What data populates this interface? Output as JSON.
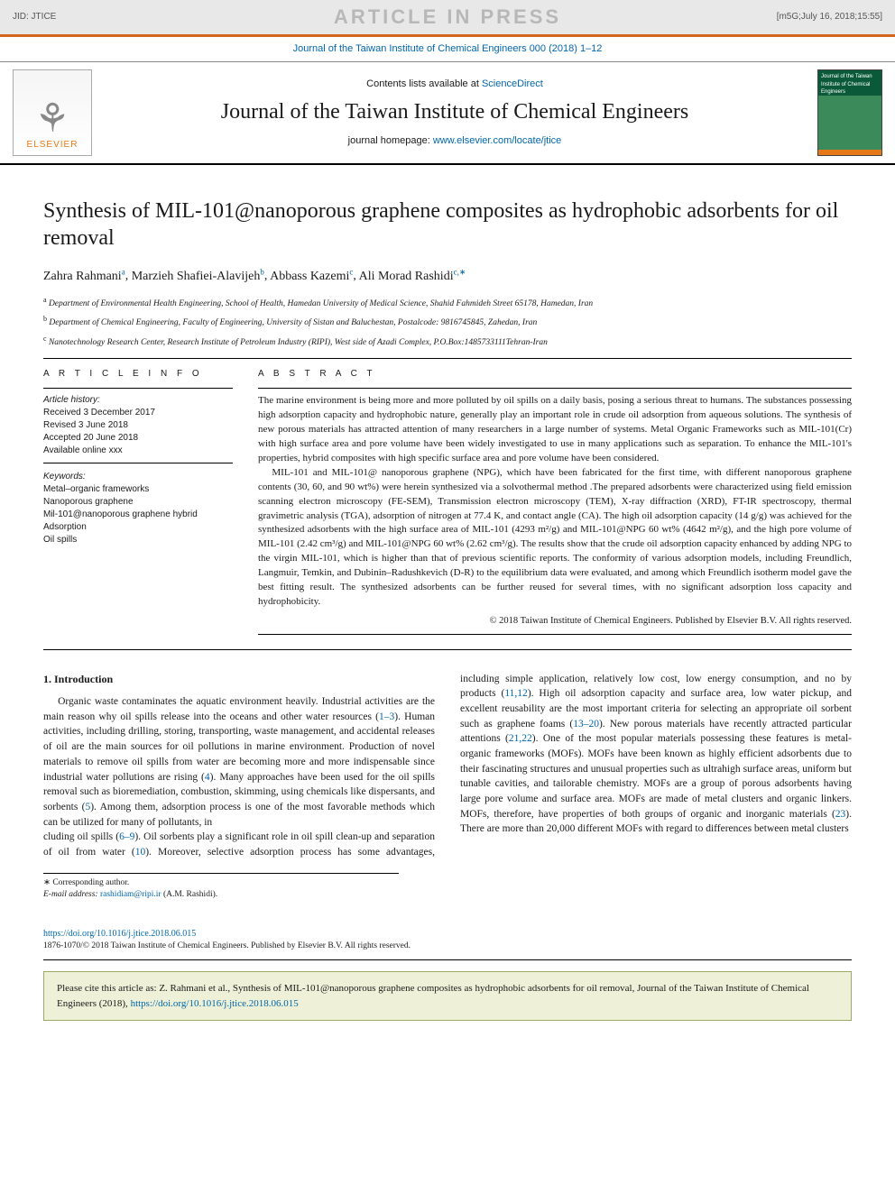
{
  "banner": {
    "jid": "JID: JTICE",
    "watermark": "ARTICLE IN PRESS",
    "datestamp": "[m5G;July 16, 2018;15:55]"
  },
  "journal_ref": "Journal of the Taiwan Institute of Chemical Engineers 000 (2018) 1–12",
  "masthead": {
    "elsevier": "ELSEVIER",
    "contents_prefix": "Contents lists available at ",
    "contents_link": "ScienceDirect",
    "journal_title": "Journal of the Taiwan Institute of Chemical Engineers",
    "homepage_prefix": "journal homepage: ",
    "homepage_link": "www.elsevier.com/locate/jtice",
    "cover_text": "Journal of the Taiwan Institute of Chemical Engineers"
  },
  "article": {
    "title": "Synthesis of MIL-101@nanoporous graphene composites as hydrophobic adsorbents for oil removal",
    "authors": [
      {
        "name": "Zahra Rahmani",
        "aff": "a"
      },
      {
        "name": "Marzieh Shafiei-Alavijeh",
        "aff": "b"
      },
      {
        "name": "Abbass Kazemi",
        "aff": "c"
      },
      {
        "name": "Ali Morad Rashidi",
        "aff": "c,∗"
      }
    ],
    "affiliations": [
      {
        "tag": "a",
        "text": "Department of Environmental Health Engineering, School of Health, Hamedan University of Medical Science, Shahid Fahmideh Street 65178, Hamedan, Iran"
      },
      {
        "tag": "b",
        "text": "Department of Chemical Engineering, Faculty of Engineering, University of Sistan and Baluchestan, Postalcode: 9816745845, Zahedan, Iran"
      },
      {
        "tag": "c",
        "text": "Nanotechnology Research Center, Research Institute of Petroleum Industry (RIPI), West side of Azadi Complex, P.O.Box:1485733111Tehran-Iran"
      }
    ]
  },
  "info": {
    "label": "a r t i c l e   i n f o",
    "history_label": "Article history:",
    "history": [
      "Received 3 December 2017",
      "Revised 3 June 2018",
      "Accepted 20 June 2018",
      "Available online xxx"
    ],
    "kw_label": "Keywords:",
    "keywords": [
      "Metal–organic frameworks",
      "Nanoporous graphene",
      "Mil-101@nanoporous graphene hybrid",
      "Adsorption",
      "Oil spills"
    ]
  },
  "abstract": {
    "label": "a b s t r a c t",
    "paragraphs": [
      "The marine environment is being more and more polluted by oil spills on a daily basis, posing a serious threat to humans. The substances possessing high adsorption capacity and hydrophobic nature, generally play an important role in crude oil adsorption from aqueous solutions. The synthesis of new porous materials has attracted attention of many researchers in a large number of systems. Metal Organic Frameworks such as MIL-101(Cr) with high surface area and pore volume have been widely investigated to use in many applications such as separation. To enhance the MIL-101's properties, hybrid composites with high specific surface area and pore volume have been considered.",
      "MIL-101 and MIL-101@ nanoporous graphene (NPG), which have been fabricated for the first time, with different nanoporous graphene contents (30, 60, and 90 wt%) were herein synthesized via a solvothermal method .The prepared adsorbents were characterized using field emission scanning electron microscopy (FE-SEM), Transmission electron microscopy (TEM), X-ray diffraction (XRD), FT-IR spectroscopy, thermal gravimetric analysis (TGA), adsorption of nitrogen at 77.4 K, and contact angle (CA). The high oil adsorption capacity (14 g/g) was achieved for the synthesized adsorbents with the high surface area of MIL-101 (4293 m²/g) and MIL-101@NPG 60 wt% (4642 m²/g), and the high pore volume of MIL-101 (2.42 cm³/g) and MIL-101@NPG 60 wt% (2.62 cm³/g). The results show that the crude oil adsorption capacity enhanced by adding NPG to the virgin MIL-101, which is higher than that of previous scientific reports. The conformity of various adsorption models, including Freundlich, Langmuir, Temkin, and Dubinin–Radushkevich (D-R) to the equilibrium data were evaluated, and among which Freundlich isotherm model gave the best fitting result. The synthesized adsorbents can be further reused for several times, with no significant adsorption loss capacity and hydrophobicity."
    ],
    "copyright": "© 2018 Taiwan Institute of Chemical Engineers. Published by Elsevier B.V. All rights reserved."
  },
  "body": {
    "heading": "1. Introduction",
    "col1": "Organic waste contaminates the aquatic environment heavily. Industrial activities are the main reason why oil spills release into the oceans and other water resources (1–3). Human activities, including drilling, storing, transporting, waste management, and accidental releases of oil are the main sources for oil pollutions in marine environment. Production of novel materials to remove oil spills from water are becoming more and more indispensable since industrial water pollutions are rising (4). Many approaches have been used for the oil spills removal such as bioremediation, combustion, skimming, using chemicals like dispersants, and sorbents (5). Among them, adsorption process is one of the most favorable methods which can be utilized for many of pollutants, in",
    "col2": "cluding oil spills (6–9). Oil sorbents play a significant role in oil spill clean-up and separation of oil from water (10). Moreover, selective adsorption process has some advantages, including simple application, relatively low cost, low energy consumption, and no by products (11,12). High oil adsorption capacity and surface area, low water pickup, and excellent reusability are the most important criteria for selecting an appropriate oil sorbent such as graphene foams (13–20). New porous materials have recently attracted particular attentions (21,22). One of the most popular materials possessing these features is metal-organic frameworks (MOFs). MOFs have been known as highly efficient adsorbents due to their fascinating structures and unusual properties such as ultrahigh surface areas, uniform but tunable cavities, and tailorable chemistry. MOFs are a group of porous adsorbents having large pore volume and surface area. MOFs are made of metal clusters and organic linkers. MOFs, therefore, have properties of both groups of organic and inorganic materials (23). There are more than 20,000 different MOFs with regard to differences between metal clusters",
    "refs": {
      "r1": "1–3",
      "r4": "4",
      "r5": "5",
      "r6": "6–9",
      "r10": "10",
      "r11": "11,12",
      "r13": "13–20",
      "r21": "21,22",
      "r23": "23"
    }
  },
  "footnotes": {
    "corr": "∗ Corresponding author.",
    "email_label": "E-mail address: ",
    "email": "rashidiam@ripi.ir",
    "email_name": " (A.M. Rashidi)."
  },
  "footer": {
    "doi": "https://doi.org/10.1016/j.jtice.2018.06.015",
    "issn_copy": "1876-1070/© 2018 Taiwan Institute of Chemical Engineers. Published by Elsevier B.V. All rights reserved.",
    "cite": "Please cite this article as: Z. Rahmani et al., Synthesis of MIL-101@nanoporous graphene composites as hydrophobic adsorbents for oil removal, Journal of the Taiwan Institute of Chemical Engineers (2018), ",
    "cite_link": "https://doi.org/10.1016/j.jtice.2018.06.015"
  },
  "colors": {
    "accent_orange": "#d4651f",
    "link_blue": "#0066aa",
    "elsevier_orange": "#e67817",
    "cite_bg": "#eef0d8",
    "cite_border": "#9aa86a",
    "banner_bg": "#e8e8e8",
    "watermark_gray": "#b8b8b8"
  }
}
